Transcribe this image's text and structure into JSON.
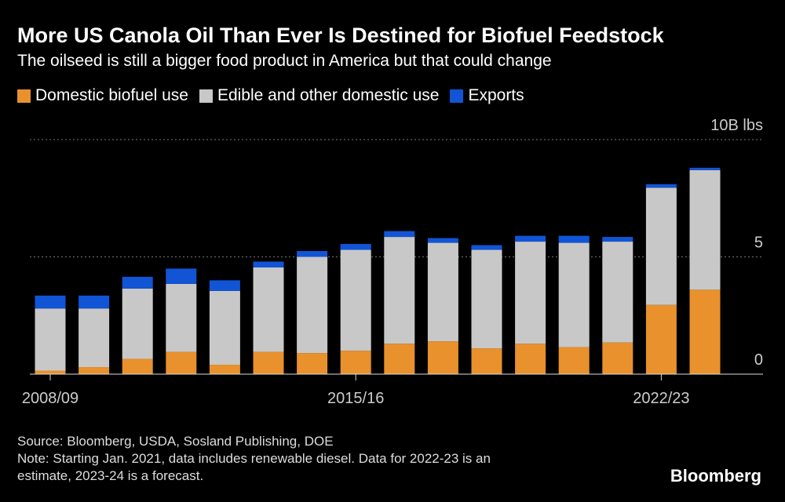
{
  "title": "More US Canola Oil Than Ever Is Destined for Biofuel Feedstock",
  "subtitle": "The oilseed is still a bigger food product in America but that could change",
  "legend": [
    {
      "label": "Domestic biofuel use",
      "color": "#e8912d"
    },
    {
      "label": "Edible and other domestic use",
      "color": "#c8c8c8"
    },
    {
      "label": "Exports",
      "color": "#1155d6"
    }
  ],
  "source": "Source: Bloomberg, USDA, Sosland Publishing, DOE",
  "note_line1": "Note: Starting Jan. 2021, data includes renewable diesel. Data for 2022-23 is an",
  "note_line2": "estimate, 2023-24 is a forecast.",
  "brand": "Bloomberg",
  "chart_data": {
    "type": "bar",
    "stacked": true,
    "unit": "10B lbs",
    "categories": [
      "2008/09",
      "2009/10",
      "2010/11",
      "2011/12",
      "2012/13",
      "2013/14",
      "2014/15",
      "2015/16",
      "2016/17",
      "2017/18",
      "2018/19",
      "2019/20",
      "2020/21",
      "2021/22",
      "2022/23",
      "2023/24"
    ],
    "x_tick_labels": [
      "2008/09",
      "2015/16",
      "2022/23"
    ],
    "series": [
      {
        "name": "Domestic biofuel use",
        "color": "#e8912d",
        "values": [
          0.15,
          0.3,
          0.65,
          0.95,
          0.4,
          0.95,
          0.9,
          1.0,
          1.3,
          1.4,
          1.1,
          1.3,
          1.15,
          1.35,
          2.95,
          3.6
        ]
      },
      {
        "name": "Edible and other domestic use",
        "color": "#c8c8c8",
        "values": [
          2.65,
          2.5,
          3.0,
          2.9,
          3.15,
          3.6,
          4.1,
          4.3,
          4.55,
          4.2,
          4.2,
          4.35,
          4.45,
          4.3,
          5.0,
          5.1
        ]
      },
      {
        "name": "Exports",
        "color": "#1155d6",
        "values": [
          0.55,
          0.55,
          0.5,
          0.65,
          0.45,
          0.25,
          0.25,
          0.25,
          0.25,
          0.2,
          0.2,
          0.25,
          0.3,
          0.2,
          0.15,
          0.1
        ]
      }
    ],
    "ylim": [
      0,
      10
    ],
    "y_ticks": [
      {
        "value": 0,
        "label": "0"
      },
      {
        "value": 5,
        "label": "5"
      },
      {
        "value": 10,
        "label": "10B lbs"
      }
    ],
    "grid": true
  }
}
